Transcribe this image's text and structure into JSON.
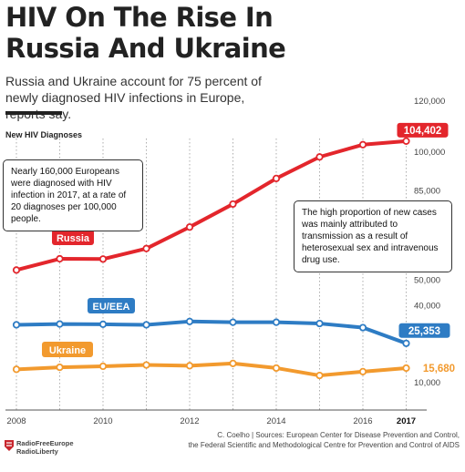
{
  "header": {
    "title_line1": "HIV On The Rise In",
    "title_line2": "Russia And Ukraine",
    "subtitle": "Russia and Ukraine account for 75 percent of newly diagnosed HIV infections in Europe, reports say.",
    "chart_label": "New HIV Diagnoses"
  },
  "annotations": {
    "left_note": "Nearly 160,000 Europeans were diagnosed with HIV infection in 2017, at a rate of 20 diagnoses per 100,000 people.",
    "right_note": "The high proportion of new cases was mainly attributed to transmission as a result of heterosexual sex and intravenous drug use."
  },
  "footer": {
    "credit_line1": "C. Coelho | Sources: European Center for Disease Prevention and Control,",
    "credit_line2": "the Federal Scientific and Methodological Centre for Prevention and Control of AIDS",
    "logo_line1": "RadioFreeEurope",
    "logo_line2": "RadioLiberty"
  },
  "chart_data": {
    "type": "line",
    "x": [
      2008,
      2009,
      2010,
      2011,
      2012,
      2013,
      2014,
      2015,
      2016,
      2017
    ],
    "x_tick_labels": [
      "2008",
      "2010",
      "2012",
      "2014",
      "2016",
      "2017"
    ],
    "y_tick_labels": [
      "120,000",
      "100,000",
      "85,000",
      "50,000",
      "40,000",
      "10,000"
    ],
    "ylim": [
      0,
      125000
    ],
    "grid": "vertical dotted",
    "series": [
      {
        "name": "Russia",
        "color": "#e3262c",
        "end_label": "104,402",
        "values": [
          54000,
          58400,
          58300,
          62400,
          70800,
          79800,
          89800,
          98200,
          103000,
          104402
        ]
      },
      {
        "name": "EU/EEA",
        "color": "#2e7cc4",
        "end_label": "25,353",
        "values": [
          32600,
          32900,
          32800,
          32600,
          33900,
          33600,
          33600,
          33100,
          31500,
          25353
        ]
      },
      {
        "name": "Ukraine",
        "color": "#f29a2e",
        "end_label": "15,680",
        "values": [
          15200,
          16000,
          16400,
          16900,
          16600,
          17500,
          15700,
          12800,
          14300,
          15680
        ]
      }
    ]
  }
}
